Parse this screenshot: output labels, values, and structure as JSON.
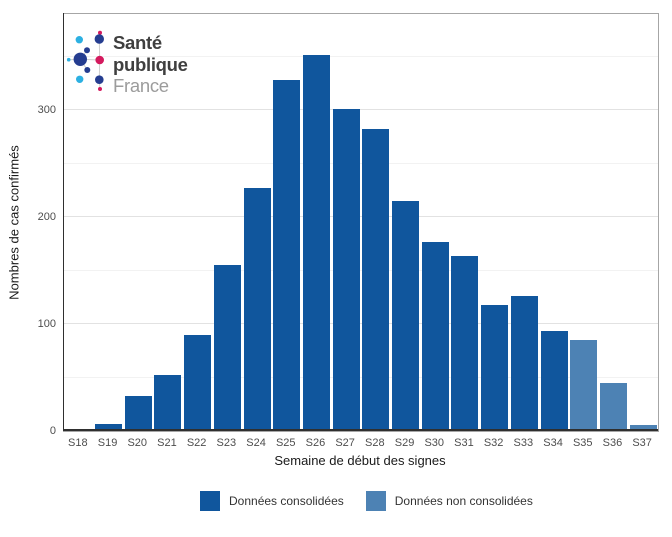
{
  "logo": {
    "line1": "Santé",
    "line2": "publique",
    "line3": "France",
    "colors": {
      "navy": "#253d90",
      "cyan": "#2cb0e2",
      "crimson": "#d41a5e",
      "text_dark": "#3f3f3f",
      "text_light": "#9c9c9c"
    }
  },
  "chart_data": {
    "type": "bar",
    "title": "",
    "xlabel": "Semaine de début des signes",
    "ylabel": "Nombres de cas confirmés",
    "categories": [
      "S18",
      "S19",
      "S20",
      "S21",
      "S22",
      "S23",
      "S24",
      "S25",
      "S26",
      "S27",
      "S28",
      "S29",
      "S30",
      "S31",
      "S32",
      "S33",
      "S34",
      "S35",
      "S36",
      "S37"
    ],
    "series": [
      {
        "name": "Données consolidées",
        "color": "#10569d",
        "values": [
          1,
          7,
          33,
          52,
          90,
          155,
          227,
          328,
          352,
          301,
          282,
          215,
          177,
          164,
          118,
          126,
          94,
          0,
          0,
          0
        ]
      },
      {
        "name": "Données non consolidées",
        "color": "#4d82b4",
        "values": [
          0,
          0,
          0,
          0,
          0,
          0,
          0,
          0,
          0,
          0,
          0,
          0,
          0,
          0,
          0,
          0,
          0,
          85,
          45,
          6
        ]
      }
    ],
    "ylim": [
      0,
      390
    ],
    "yticks": [
      0,
      100,
      200,
      300
    ],
    "yticks_minor": [
      50,
      150,
      250,
      350
    ],
    "grid": true,
    "legend_position": "bottom",
    "panel_border_color": "#a6a6a6",
    "axis_line_color": "#2f2f2f"
  }
}
